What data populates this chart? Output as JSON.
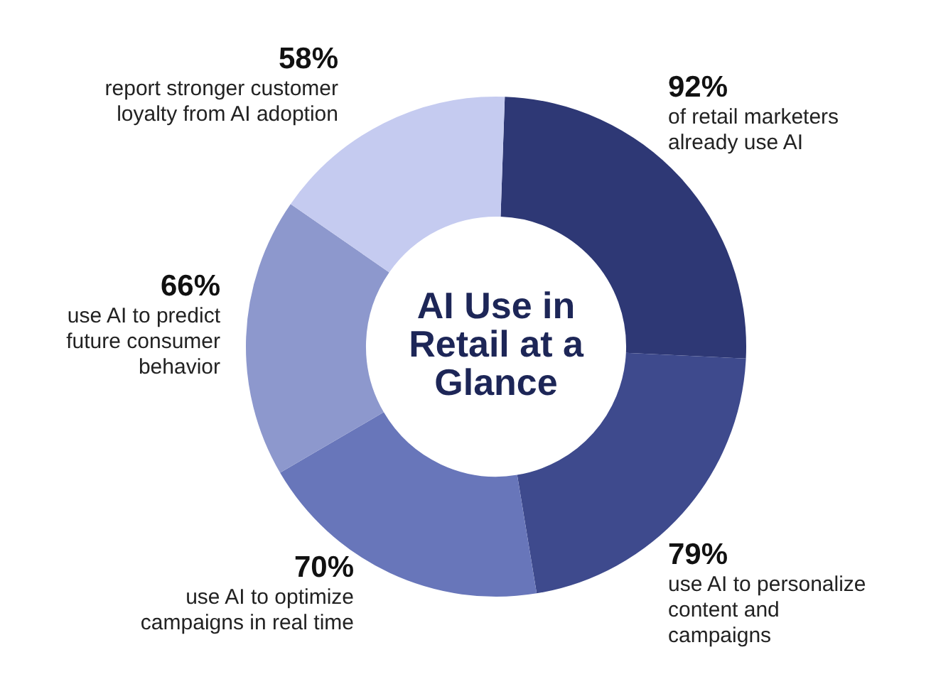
{
  "chart_data": {
    "type": "donut",
    "title": "AI Use in Retail at a Glance",
    "categories": [
      "of retail marketers already use AI",
      "use AI to personalize content and campaigns",
      "use AI to optimize campaigns in real time",
      "use AI to predict future consumer behavior",
      "report stronger customer loyalty from AI adoption"
    ],
    "values": [
      92,
      79,
      70,
      66,
      58
    ],
    "colors": [
      "#2e3875",
      "#3e4a8d",
      "#6876ba",
      "#8d98cd",
      "#c5cbf0"
    ],
    "value_labels": [
      "92%",
      "79%",
      "70%",
      "66%",
      "58%"
    ],
    "legend": false
  }
}
